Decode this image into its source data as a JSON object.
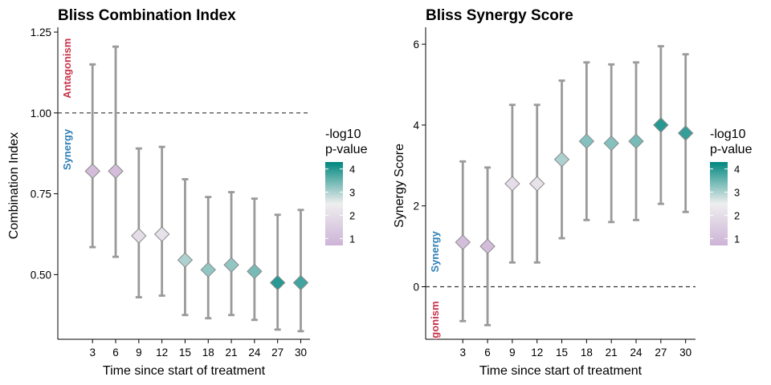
{
  "chart_data": [
    {
      "type": "scatter",
      "title": "Bliss Combination Index",
      "xlabel": "Time since start of treatment",
      "ylabel": "Combination Index",
      "x": [
        3,
        6,
        9,
        12,
        15,
        18,
        21,
        24,
        27,
        30
      ],
      "y": [
        0.82,
        0.82,
        0.62,
        0.625,
        0.545,
        0.515,
        0.53,
        0.51,
        0.475,
        0.475
      ],
      "lower": [
        0.585,
        0.555,
        0.43,
        0.435,
        0.375,
        0.365,
        0.375,
        0.36,
        0.33,
        0.325
      ],
      "upper": [
        1.15,
        1.205,
        0.89,
        0.895,
        0.795,
        0.74,
        0.755,
        0.735,
        0.685,
        0.7
      ],
      "neg_log10_p": [
        1.0,
        1.0,
        2.0,
        2.1,
        3.0,
        3.2,
        3.2,
        3.4,
        4.0,
        3.8
      ],
      "ylim": [
        0.3,
        1.25
      ],
      "yticks": [
        0.5,
        0.75,
        1.0,
        1.25
      ],
      "ytick_labels": [
        "0.50",
        "0.75",
        "1.00",
        "1.25"
      ],
      "reference_line": 1.0,
      "annotations": [
        {
          "text": "Antagonism",
          "color": "#c9344a"
        },
        {
          "text": "Synergy",
          "color": "#2f7fb5"
        }
      ],
      "legend": {
        "title_line1": "-log10",
        "title_line2": "p-value",
        "ticks": [
          1,
          2,
          3,
          4
        ],
        "range": [
          0.7,
          4.3
        ],
        "position": "right"
      }
    },
    {
      "type": "scatter",
      "title": "Bliss Synergy Score",
      "xlabel": "Time since start of treatment",
      "ylabel": "Synergy Score",
      "x": [
        3,
        6,
        9,
        12,
        15,
        18,
        21,
        24,
        27,
        30
      ],
      "y": [
        1.1,
        1.0,
        2.55,
        2.55,
        3.15,
        3.6,
        3.55,
        3.6,
        4.0,
        3.8
      ],
      "lower": [
        -0.85,
        -0.95,
        0.6,
        0.6,
        1.2,
        1.65,
        1.6,
        1.65,
        2.05,
        1.85
      ],
      "upper": [
        3.1,
        2.95,
        4.5,
        4.5,
        5.1,
        5.55,
        5.5,
        5.55,
        5.95,
        5.75
      ],
      "neg_log10_p": [
        1.0,
        1.0,
        2.0,
        2.1,
        3.0,
        3.3,
        3.3,
        3.4,
        4.0,
        3.9
      ],
      "ylim": [
        -1.3,
        6.3
      ],
      "yticks": [
        0,
        2,
        4,
        6
      ],
      "ytick_labels": [
        "0",
        "2",
        "4",
        "6"
      ],
      "reference_line": 0,
      "annotations": [
        {
          "text": "Synergy",
          "color": "#2f7fb5"
        },
        {
          "text": "Antagonism",
          "color": "#c9344a"
        }
      ],
      "legend": {
        "title_line1": "-log10",
        "title_line2": "p-value",
        "ticks": [
          1,
          2,
          3,
          4
        ],
        "range": [
          0.7,
          4.3
        ],
        "position": "right"
      }
    }
  ],
  "colors": {
    "low": "#cdb3d7",
    "mid": "#eeeeee",
    "high": "#00877f",
    "errorbar": "#9a9a9a",
    "reference_line": "#333333"
  },
  "xticks": [
    3,
    6,
    9,
    12,
    15,
    18,
    21,
    24,
    27,
    30
  ],
  "xlim": [
    -1.5,
    31.2
  ]
}
